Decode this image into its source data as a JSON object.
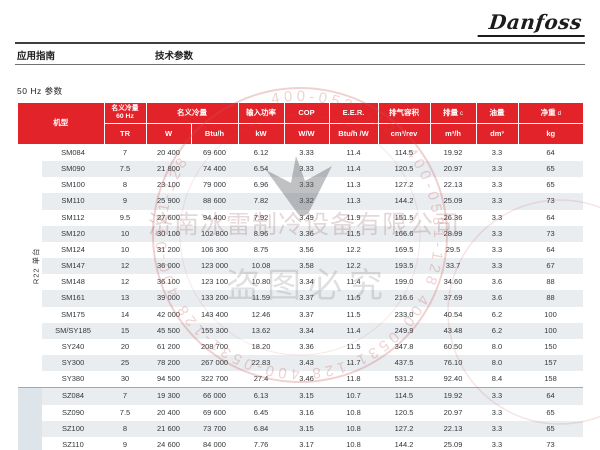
{
  "brand": {
    "logo_text": "Danfoss"
  },
  "page_header": {
    "left_label": "应用指南",
    "center_label": "技术参数"
  },
  "section_title": "50 Hz 参数",
  "table": {
    "group_label": "R22 单台",
    "r22_row_count": 15,
    "header": {
      "model": "机型",
      "cap60": "名义冷量",
      "cap60_sub": "60 Hz",
      "cap": "名义冷量",
      "power": "输入功率",
      "cop": "COP",
      "eer": "E.E.R.",
      "disp_vol": "排气容积",
      "disp": "排量",
      "disp_note": "c",
      "oil": "油量",
      "weight": "净重",
      "weight_note": "d",
      "units": [
        "TR",
        "W",
        "Btu/h",
        "kW",
        "W/W",
        "Btu/h /W",
        "cm³/rev",
        "m³/h",
        "dm³",
        "kg"
      ]
    },
    "rows": [
      [
        "SM084",
        "7",
        "20 400",
        "69 600",
        "6.12",
        "3.33",
        "11.4",
        "114.5",
        "19.92",
        "3.3",
        "64"
      ],
      [
        "SM090",
        "7.5",
        "21 800",
        "74 400",
        "6.54",
        "3.33",
        "11.4",
        "120.5",
        "20.97",
        "3.3",
        "65"
      ],
      [
        "SM100",
        "8",
        "23 100",
        "79 000",
        "6.96",
        "3.33",
        "11.3",
        "127.2",
        "22.13",
        "3.3",
        "65"
      ],
      [
        "SM110",
        "9",
        "25 900",
        "88 600",
        "7.82",
        "3.32",
        "11.3",
        "144.2",
        "25.09",
        "3.3",
        "73"
      ],
      [
        "SM112",
        "9.5",
        "27 600",
        "94 400",
        "7.92",
        "3.49",
        "11.9",
        "151.5",
        "26.36",
        "3.3",
        "64"
      ],
      [
        "SM120",
        "10",
        "30 100",
        "102 800",
        "8.96",
        "3.36",
        "11.5",
        "166.6",
        "28.99",
        "3.3",
        "73"
      ],
      [
        "SM124",
        "10",
        "31 200",
        "106 300",
        "8.75",
        "3.56",
        "12.2",
        "169.5",
        "29.5",
        "3.3",
        "64"
      ],
      [
        "SM147",
        "12",
        "36 000",
        "123 000",
        "10.08",
        "3.58",
        "12.2",
        "193.5",
        "33.7",
        "3.3",
        "67"
      ],
      [
        "SM148",
        "12",
        "36 100",
        "123 100",
        "10.80",
        "3.34",
        "11.4",
        "199.0",
        "34.60",
        "3.6",
        "88"
      ],
      [
        "SM161",
        "13",
        "39 000",
        "133 200",
        "11.59",
        "3.37",
        "11.5",
        "216.6",
        "37.69",
        "3.6",
        "88"
      ],
      [
        "SM175",
        "14",
        "42 000",
        "143 400",
        "12.46",
        "3.37",
        "11.5",
        "233.0",
        "40.54",
        "6.2",
        "100"
      ],
      [
        "SM/SY185",
        "15",
        "45 500",
        "155 300",
        "13.62",
        "3.34",
        "11.4",
        "249.9",
        "43.48",
        "6.2",
        "100"
      ],
      [
        "SY240",
        "20",
        "61 200",
        "208 700",
        "18.20",
        "3.36",
        "11.5",
        "347.8",
        "60.50",
        "8.0",
        "150"
      ],
      [
        "SY300",
        "25",
        "78 200",
        "267 000",
        "22.83",
        "3.43",
        "11.7",
        "437.5",
        "76.10",
        "8.0",
        "157"
      ],
      [
        "SY380",
        "30",
        "94 500",
        "322 700",
        "27.4",
        "3.46",
        "11.8",
        "531.2",
        "92.40",
        "8.4",
        "158"
      ],
      [
        "SZ084",
        "7",
        "19 300",
        "66 000",
        "6.13",
        "3.15",
        "10.7",
        "114.5",
        "19.92",
        "3.3",
        "64"
      ],
      [
        "SZ090",
        "7.5",
        "20 400",
        "69 600",
        "6.45",
        "3.16",
        "10.8",
        "120.5",
        "20.97",
        "3.3",
        "65"
      ],
      [
        "SZ100",
        "8",
        "21 600",
        "73 700",
        "6.84",
        "3.15",
        "10.8",
        "127.2",
        "22.13",
        "3.3",
        "65"
      ],
      [
        "SZ110",
        "9",
        "24 600",
        "84 000",
        "7.76",
        "3.17",
        "10.8",
        "144.2",
        "25.09",
        "3.3",
        "73"
      ]
    ]
  },
  "watermark": {
    "company": "济南冰雷制冷设备有限公司",
    "warning": "盗图必究",
    "phone_ring": "400-0531-128   400-0531-128   400-0531-128   400-0531-128   400-0531-128"
  },
  "colors": {
    "danfoss_red": "#e2232a",
    "row_alt": "#e9edf0",
    "group_alt_bg": "#dde4ea",
    "stamp": "#c85a5a"
  }
}
